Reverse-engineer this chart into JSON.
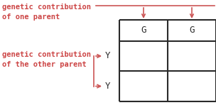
{
  "text_left_top": "genetic contribution\nof one parent",
  "text_left_bottom": "genetic contribution\nof the other parent",
  "top_labels": [
    "G",
    "G"
  ],
  "left_labels": [
    "Y",
    "Y"
  ],
  "text_color": "#cc4444",
  "grid_color": "#2a2a2a",
  "label_color": "#2a2a2a",
  "arrow_color": "#cc5555",
  "bg_color": "#ffffff",
  "fontsize_labels": 9,
  "fontsize_text": 7.5
}
